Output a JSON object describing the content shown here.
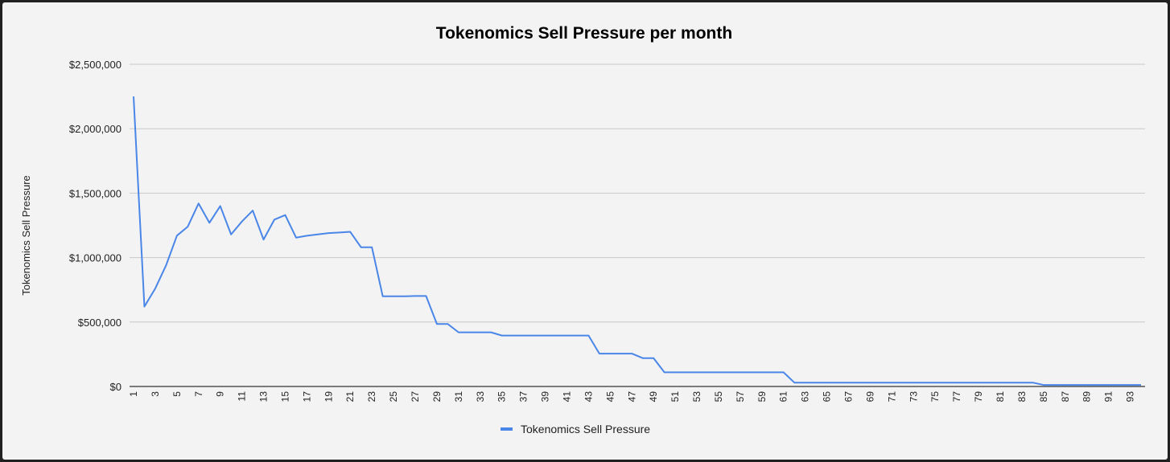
{
  "chart_data": {
    "type": "line",
    "title": "Tokenomics Sell Pressure per month",
    "xlabel": "",
    "ylabel": "Tokenomics Sell Pressure",
    "ylim": [
      0,
      2500000
    ],
    "yticks": [
      0,
      500000,
      1000000,
      1500000,
      2000000,
      2500000
    ],
    "ytick_labels": [
      "$0",
      "$500,000",
      "$1,000,000",
      "$1,500,000",
      "$2,000,000",
      "$2,500,000"
    ],
    "x_range": [
      1,
      94
    ],
    "xtick_labels": [
      "1",
      "3",
      "5",
      "7",
      "9",
      "11",
      "13",
      "15",
      "17",
      "19",
      "21",
      "23",
      "25",
      "27",
      "29",
      "31",
      "33",
      "35",
      "37",
      "39",
      "41",
      "43",
      "45",
      "47",
      "49",
      "51",
      "53",
      "55",
      "57",
      "59",
      "61",
      "63",
      "65",
      "67",
      "69",
      "71",
      "73",
      "75",
      "77",
      "79",
      "81",
      "83",
      "85",
      "87",
      "89",
      "91",
      "93"
    ],
    "grid": true,
    "legend_position": "bottom",
    "series": [
      {
        "name": "Tokenomics Sell Pressure",
        "color": "#4a86e8",
        "x": [
          1,
          2,
          3,
          4,
          5,
          6,
          7,
          8,
          9,
          10,
          11,
          12,
          13,
          14,
          15,
          16,
          17,
          18,
          19,
          20,
          21,
          22,
          23,
          24,
          25,
          26,
          27,
          28,
          29,
          30,
          31,
          32,
          33,
          34,
          35,
          36,
          37,
          38,
          39,
          40,
          41,
          42,
          43,
          44,
          45,
          46,
          47,
          48,
          49,
          50,
          51,
          52,
          53,
          54,
          55,
          56,
          57,
          58,
          59,
          60,
          61,
          62,
          63,
          64,
          65,
          66,
          67,
          68,
          69,
          70,
          71,
          72,
          73,
          74,
          75,
          76,
          77,
          78,
          79,
          80,
          81,
          82,
          83,
          84,
          85,
          86,
          87,
          88,
          89,
          90,
          91,
          92,
          93,
          94
        ],
        "values": [
          2250000,
          620000,
          760000,
          940000,
          1170000,
          1240000,
          1420000,
          1270000,
          1400000,
          1180000,
          1280000,
          1365000,
          1140000,
          1295000,
          1330000,
          1155000,
          1170000,
          1180000,
          1190000,
          1195000,
          1200000,
          1080000,
          1080000,
          700000,
          700000,
          700000,
          702000,
          702000,
          485000,
          485000,
          420000,
          420000,
          420000,
          420000,
          395000,
          395000,
          395000,
          395000,
          395000,
          395000,
          395000,
          395000,
          395000,
          255000,
          255000,
          255000,
          255000,
          220000,
          220000,
          110000,
          110000,
          110000,
          110000,
          110000,
          110000,
          110000,
          110000,
          110000,
          110000,
          110000,
          110000,
          30000,
          30000,
          30000,
          30000,
          30000,
          30000,
          30000,
          30000,
          30000,
          30000,
          30000,
          30000,
          30000,
          30000,
          30000,
          30000,
          30000,
          30000,
          30000,
          30000,
          30000,
          30000,
          30000,
          12000,
          12000,
          12000,
          12000,
          12000,
          12000,
          12000,
          12000,
          12000,
          12000
        ]
      }
    ]
  }
}
